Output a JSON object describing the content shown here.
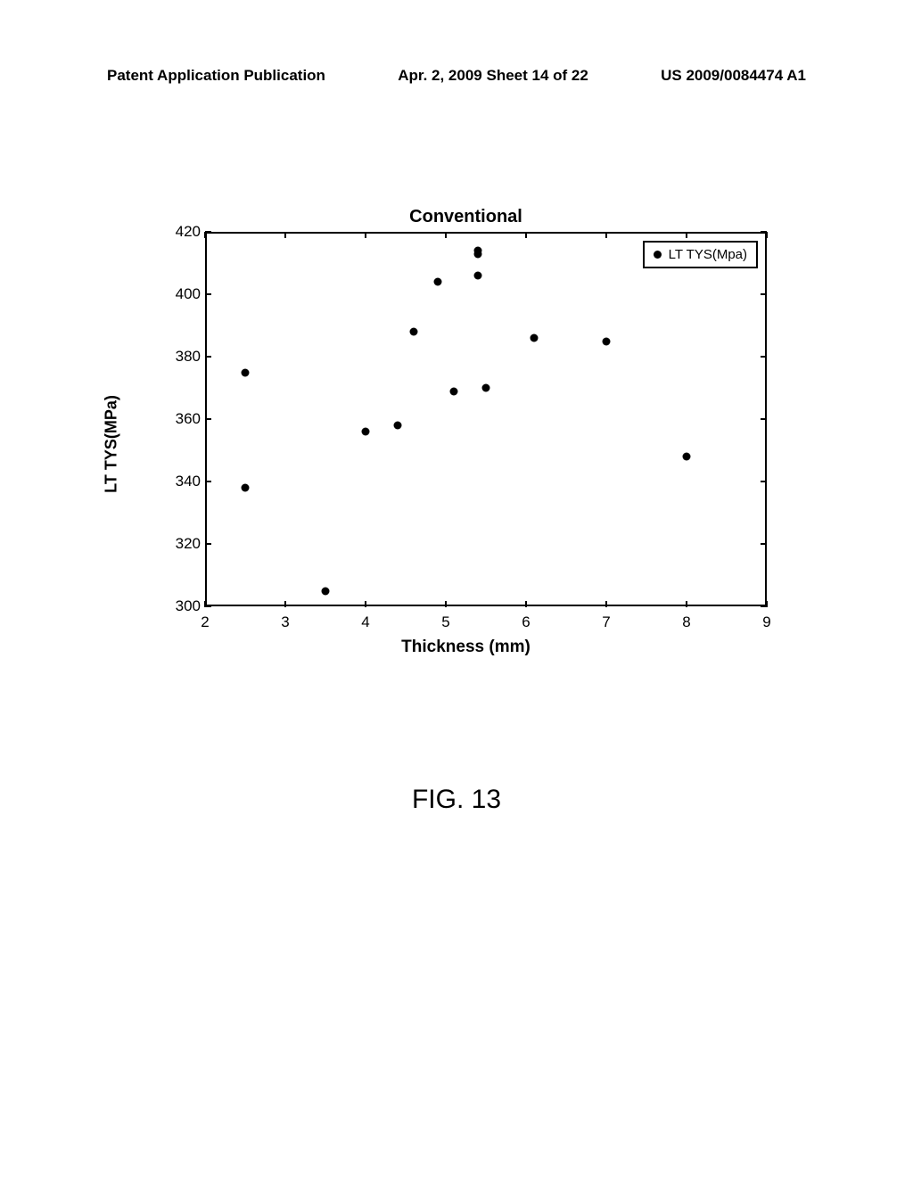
{
  "header": {
    "left": "Patent Application Publication",
    "center": "Apr. 2, 2009  Sheet 14 of 22",
    "right": "US 2009/0084474 A1"
  },
  "chart": {
    "type": "scatter",
    "title": "Conventional",
    "title_fontsize": 20,
    "xlabel": "Thickness (mm)",
    "ylabel": "LT TYS(MPa)",
    "label_fontsize": 18,
    "xlim": [
      2,
      9
    ],
    "ylim": [
      300,
      420
    ],
    "xtick_step": 1,
    "ytick_step": 20,
    "xticks": [
      2,
      3,
      4,
      5,
      6,
      7,
      8,
      9
    ],
    "yticks": [
      300,
      320,
      340,
      360,
      380,
      400,
      420
    ],
    "background_color": "#ffffff",
    "axis_color": "#000000",
    "marker_color": "#000000",
    "marker_size": 9,
    "marker_style": "circle",
    "legend": {
      "label": "LT TYS(Mpa)",
      "position": "top-right"
    },
    "data": [
      {
        "x": 2.5,
        "y": 338
      },
      {
        "x": 2.5,
        "y": 375
      },
      {
        "x": 3.5,
        "y": 305
      },
      {
        "x": 4.0,
        "y": 356
      },
      {
        "x": 4.4,
        "y": 358
      },
      {
        "x": 4.6,
        "y": 388
      },
      {
        "x": 4.9,
        "y": 404
      },
      {
        "x": 5.1,
        "y": 369
      },
      {
        "x": 5.4,
        "y": 414
      },
      {
        "x": 5.4,
        "y": 413
      },
      {
        "x": 5.4,
        "y": 406
      },
      {
        "x": 5.5,
        "y": 370
      },
      {
        "x": 6.1,
        "y": 386
      },
      {
        "x": 7.0,
        "y": 385
      },
      {
        "x": 8.0,
        "y": 348
      }
    ]
  },
  "figure_label": "FIG. 13"
}
